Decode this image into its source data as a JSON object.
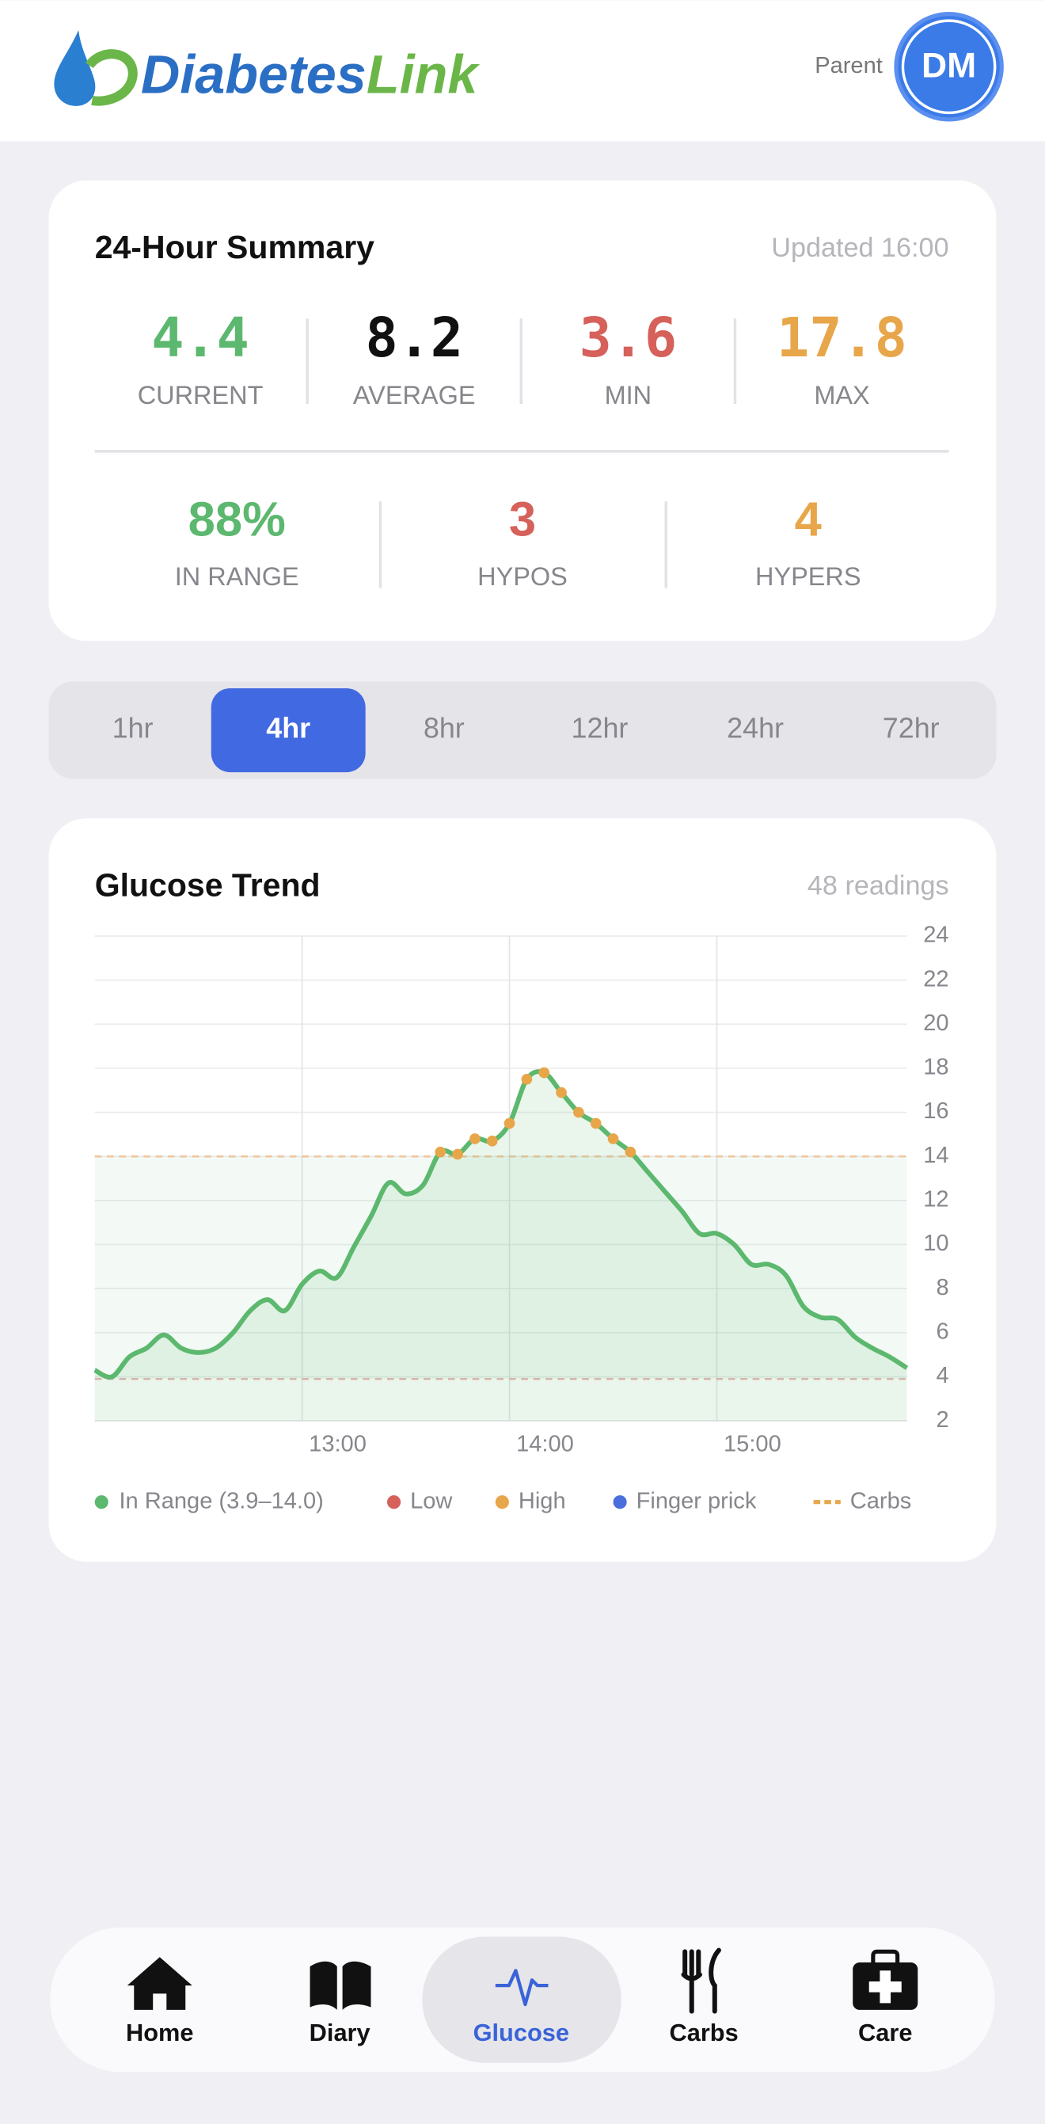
{
  "header": {
    "logo_primary": "Diabetes",
    "logo_secondary": "Link",
    "role": "Parent",
    "avatar": "DM"
  },
  "summary": {
    "title": "24-Hour Summary",
    "updated": "Updated 16:00",
    "stats": [
      {
        "value": "4.4",
        "label": "CURRENT"
      },
      {
        "value": "8.2",
        "label": "AVERAGE"
      },
      {
        "value": "3.6",
        "label": "MIN"
      },
      {
        "value": "17.8",
        "label": "MAX"
      }
    ],
    "counts": [
      {
        "value": "88%",
        "label": "IN RANGE"
      },
      {
        "value": "3",
        "label": "HYPOS"
      },
      {
        "value": "4",
        "label": "HYPERS"
      }
    ]
  },
  "range_tabs": {
    "options": [
      "1hr",
      "4hr",
      "8hr",
      "12hr",
      "24hr",
      "72hr"
    ],
    "selected": 1
  },
  "chart_data": {
    "type": "line",
    "title": "Glucose Trend",
    "subtitle": "48 readings",
    "x": [
      "12:00",
      "12:05",
      "12:10",
      "12:15",
      "12:20",
      "12:25",
      "12:30",
      "12:35",
      "12:40",
      "12:45",
      "12:50",
      "12:55",
      "13:00",
      "13:05",
      "13:10",
      "13:15",
      "13:20",
      "13:25",
      "13:30",
      "13:35",
      "13:40",
      "13:45",
      "13:50",
      "13:55",
      "14:00",
      "14:05",
      "14:10",
      "14:15",
      "14:20",
      "14:25",
      "14:30",
      "14:35",
      "14:40",
      "14:45",
      "14:50",
      "14:55",
      "15:00",
      "15:05",
      "15:10",
      "15:15",
      "15:20",
      "15:25",
      "15:30",
      "15:35",
      "15:40",
      "15:45",
      "15:50",
      "15:55"
    ],
    "series": [
      {
        "name": "In Range (3.9–14.0)",
        "color": "#5cb86e",
        "values": [
          4.3,
          4.0,
          4.9,
          5.3,
          5.9,
          5.3,
          5.1,
          5.3,
          6.0,
          7.0,
          7.5,
          7.0,
          8.2,
          8.8,
          8.5,
          9.9,
          11.3,
          12.8,
          12.3,
          12.7,
          14.2,
          14.1,
          14.8,
          14.7,
          15.5,
          17.5,
          17.8,
          16.9,
          16.0,
          15.5,
          14.8,
          14.2,
          13.3,
          12.4,
          11.5,
          10.5,
          10.5,
          10.0,
          9.1,
          9.1,
          8.6,
          7.2,
          6.7,
          6.6,
          5.8,
          5.3,
          4.9,
          4.4
        ]
      }
    ],
    "target_low": 3.9,
    "target_high": 14.0,
    "legend_items": [
      {
        "name": "Low",
        "color": "#d6605a"
      },
      {
        "name": "High",
        "color": "#e8a64a"
      },
      {
        "name": "Finger prick",
        "color": "#4a6fdc"
      },
      {
        "name": "Carbs",
        "color": "#e8a64a"
      }
    ],
    "xlim": [
      "12:00",
      "15:55"
    ],
    "xticks": [
      "13:00",
      "14:00",
      "15:00"
    ],
    "ylim": [
      2,
      24
    ],
    "yticks": [
      2,
      4,
      6,
      8,
      10,
      12,
      14,
      16,
      18,
      20,
      22,
      24
    ],
    "grid": true
  },
  "nav": {
    "items": [
      "Home",
      "Diary",
      "Glucose",
      "Carbs",
      "Care"
    ],
    "selected": 2
  }
}
